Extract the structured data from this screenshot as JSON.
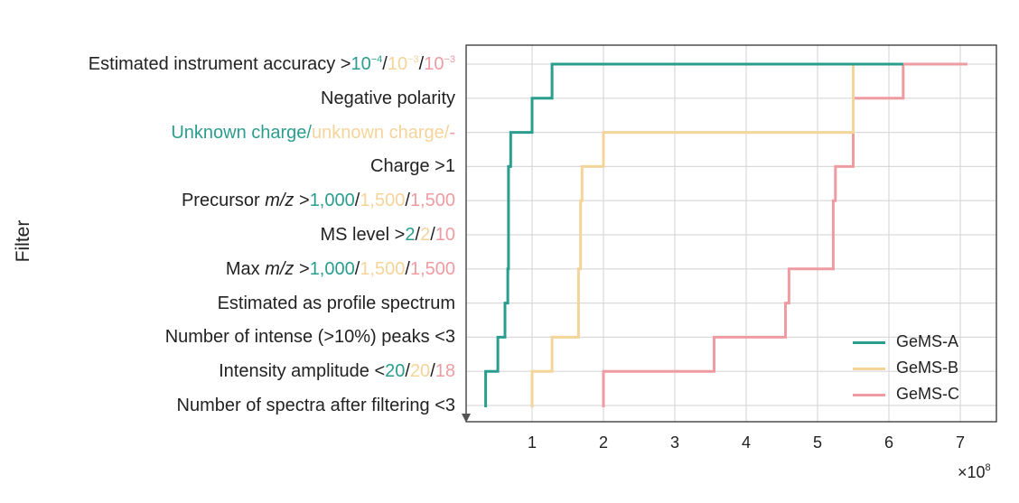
{
  "chart_data": {
    "type": "line",
    "step": true,
    "title": "",
    "ylabel": "Filter",
    "xlabel": "",
    "x_multiplier": {
      "base": "×10",
      "exp": "8"
    },
    "xlim": [
      0,
      7.5
    ],
    "x_ticks": [
      "1",
      "2",
      "3",
      "4",
      "5",
      "6",
      "7"
    ],
    "categories": [
      "Number of spectra after filtering <3",
      "Intensity amplitude <20/20/18",
      "Number of intense (>10%) peaks <3",
      "Estimated as profile spectrum",
      "Max m/z >1,000/1,500/1,500",
      "MS level >2/2/10",
      "Precursor m/z >1,000/1,500/1,500",
      "Charge >1",
      "Unknown charge/unknown charge/-",
      "Negative polarity",
      "Estimated instrument accuracy >10^-4/10^-3/10^-3"
    ],
    "category_labels": [
      {
        "parts": [
          {
            "t": "Number of spectra after filtering <3"
          }
        ]
      },
      {
        "parts": [
          {
            "t": "Intensity amplitude <"
          },
          {
            "t": "20",
            "s": "a"
          },
          {
            "t": "/"
          },
          {
            "t": "20",
            "s": "b"
          },
          {
            "t": "/"
          },
          {
            "t": "18",
            "s": "c"
          }
        ]
      },
      {
        "parts": [
          {
            "t": "Number of intense (>10%) peaks <3"
          }
        ]
      },
      {
        "parts": [
          {
            "t": "Estimated as profile spectrum"
          }
        ]
      },
      {
        "parts": [
          {
            "t": "Max "
          },
          {
            "t": "m/z",
            "i": true
          },
          {
            "t": " >"
          },
          {
            "t": "1,000",
            "s": "a"
          },
          {
            "t": "/"
          },
          {
            "t": "1,500",
            "s": "b"
          },
          {
            "t": "/"
          },
          {
            "t": "1,500",
            "s": "c"
          }
        ]
      },
      {
        "parts": [
          {
            "t": "MS level >"
          },
          {
            "t": "2",
            "s": "a"
          },
          {
            "t": "/"
          },
          {
            "t": "2",
            "s": "b"
          },
          {
            "t": "/"
          },
          {
            "t": "10",
            "s": "c"
          }
        ]
      },
      {
        "parts": [
          {
            "t": "Precursor "
          },
          {
            "t": "m/z",
            "i": true
          },
          {
            "t": " >"
          },
          {
            "t": "1,000",
            "s": "a"
          },
          {
            "t": "/"
          },
          {
            "t": "1,500",
            "s": "b"
          },
          {
            "t": "/"
          },
          {
            "t": "1,500",
            "s": "c"
          }
        ]
      },
      {
        "parts": [
          {
            "t": "Charge >1"
          }
        ]
      },
      {
        "parts": [
          {
            "t": "Unknown charge",
            "s": "a"
          },
          {
            "t": "/",
            "s": "a"
          },
          {
            "t": "unknown charge",
            "s": "b"
          },
          {
            "t": "/",
            "s": "b"
          },
          {
            "t": "-",
            "s": "c"
          }
        ]
      },
      {
        "parts": [
          {
            "t": "Negative polarity"
          }
        ]
      },
      {
        "parts": [
          {
            "t": "Estimated instrument accuracy >"
          },
          {
            "t": "10",
            "s": "a"
          },
          {
            "t": "−4",
            "s": "a",
            "sup": true
          },
          {
            "t": "/"
          },
          {
            "t": "10",
            "s": "b"
          },
          {
            "t": "−3",
            "s": "b",
            "sup": true
          },
          {
            "t": "/"
          },
          {
            "t": "10",
            "s": "c"
          },
          {
            "t": "−3",
            "s": "c",
            "sup": true
          }
        ]
      }
    ],
    "series": [
      {
        "name": "GeMS-A",
        "key": "a",
        "color": "#2a9d8f",
        "values": [
          0.35,
          0.52,
          0.62,
          0.66,
          0.67,
          0.67,
          0.67,
          0.7,
          1.0,
          1.28,
          6.2
        ]
      },
      {
        "name": "GeMS-B",
        "key": "b",
        "color": "#f5d49a",
        "values": [
          1.0,
          1.28,
          1.65,
          1.65,
          1.68,
          1.68,
          1.7,
          2.0,
          5.5,
          5.5,
          5.5
        ]
      },
      {
        "name": "GeMS-C",
        "key": "c",
        "color": "#ee9ca1",
        "values": [
          2.0,
          3.55,
          4.55,
          4.6,
          5.22,
          5.22,
          5.25,
          5.5,
          5.5,
          6.2,
          7.1
        ]
      }
    ],
    "grid": true,
    "legend_position": "bottom-right"
  }
}
